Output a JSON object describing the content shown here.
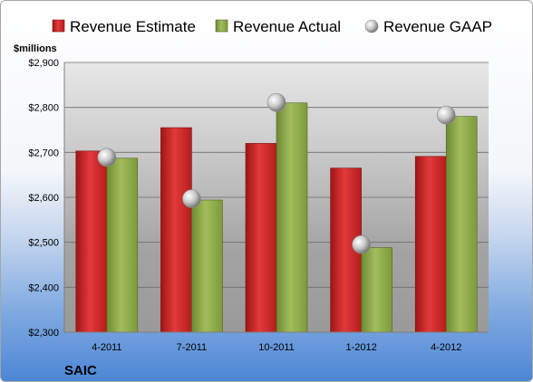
{
  "chart_data": {
    "type": "bar",
    "title": "",
    "ylabel": "$millions",
    "footer_label": "SAIC",
    "categories": [
      "4-2011",
      "7-2011",
      "10-2011",
      "1-2012",
      "4-2012"
    ],
    "series": [
      {
        "name": "Revenue Estimate",
        "kind": "bar",
        "color": "#d42b2b",
        "values": [
          2703,
          2755,
          2720,
          2665,
          2691
        ]
      },
      {
        "name": "Revenue Actual",
        "kind": "bar",
        "color": "#8fa84a",
        "values": [
          2687,
          2594,
          2810,
          2488,
          2780
        ]
      },
      {
        "name": "Revenue GAAP",
        "kind": "marker",
        "color": "#c8c8c8",
        "values": [
          2689,
          2597,
          2811,
          2495,
          2783
        ]
      }
    ],
    "ylim": [
      2300,
      2900
    ],
    "yticks": [
      2300,
      2400,
      2500,
      2600,
      2700,
      2800,
      2900
    ],
    "ytick_labels": [
      "$2,300",
      "$2,400",
      "$2,500",
      "$2,600",
      "$2,700",
      "$2,800",
      "$2,900"
    ],
    "grid": true,
    "legend_position": "top"
  }
}
